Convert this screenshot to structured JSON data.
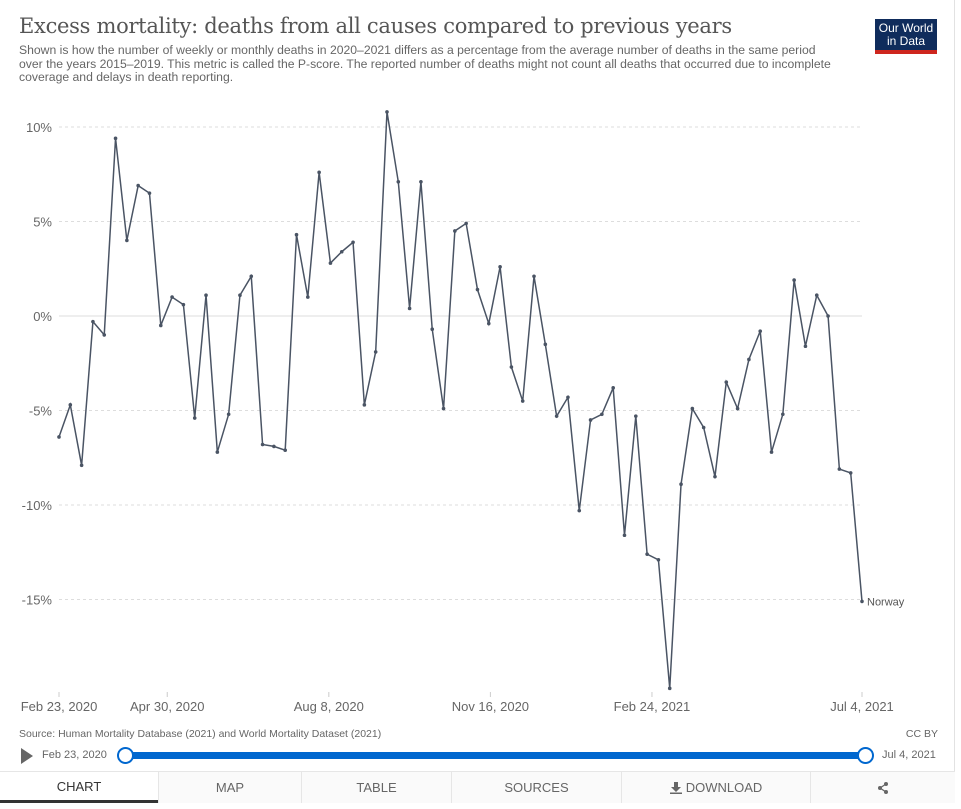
{
  "header": {
    "title": "Excess mortality: deaths from all causes compared to previous years",
    "subtitle": "Shown is how the number of weekly or monthly deaths in 2020–2021 differs as a percentage from the average number of deaths in the same period over the years 2015–2019. This metric is called the P-score. The reported number of deaths might not count all deaths that occurred due to incomplete coverage and delays in death reporting.",
    "logo_text": "Our World in Data"
  },
  "chart_data": {
    "type": "line",
    "title": "Excess mortality: deaths from all causes compared to previous years",
    "xlabel": "",
    "ylabel": "",
    "x_start": "2020-02-23",
    "x_end": "2021-07-04",
    "x_interval": "weekly",
    "x_ticks": [
      "Feb 23, 2020",
      "Apr 30, 2020",
      "Aug 8, 2020",
      "Nov 16, 2020",
      "Feb 24, 2021",
      "Jul 4, 2021"
    ],
    "x_tick_dates": [
      "2020-02-23",
      "2020-04-30",
      "2020-08-08",
      "2020-11-16",
      "2021-02-24",
      "2021-07-04"
    ],
    "y_ticks": [
      10,
      5,
      0,
      -5,
      -10,
      -15
    ],
    "y_tick_labels": [
      "10%",
      "5%",
      "0%",
      "-5%",
      "-10%",
      "-15%"
    ],
    "ylim": [
      -20,
      10.8
    ],
    "grid": "horizontal dashed",
    "line_color": "#4a5464",
    "series": [
      {
        "name": "Norway",
        "values": [
          -6.4,
          -4.7,
          -7.9,
          -0.3,
          -1.0,
          9.4,
          4.0,
          6.9,
          6.5,
          -0.5,
          1.0,
          0.6,
          -5.4,
          1.1,
          -7.2,
          -5.2,
          1.1,
          2.1,
          -6.8,
          -6.9,
          -7.1,
          4.3,
          1.0,
          7.6,
          2.8,
          3.4,
          3.9,
          -4.7,
          -1.9,
          10.8,
          7.1,
          0.4,
          7.1,
          -0.7,
          -4.9,
          4.5,
          4.9,
          1.4,
          -0.4,
          2.6,
          -2.7,
          -4.5,
          2.1,
          -1.5,
          -5.3,
          -4.3,
          -10.3,
          -5.5,
          -5.2,
          -3.8,
          -11.6,
          -5.3,
          -12.6,
          -12.9,
          -19.7,
          -8.9,
          -4.9,
          -5.9,
          -8.5,
          -3.5,
          -4.9,
          -2.3,
          -0.8,
          -7.2,
          -5.2,
          1.9,
          -1.6,
          1.1,
          0.0,
          -8.1,
          -8.3,
          -15.1
        ]
      }
    ]
  },
  "footer": {
    "source": "Source: Human Mortality Database (2021) and World Mortality Dataset (2021)",
    "license": "CC BY",
    "timeline_start": "Feb 23, 2020",
    "timeline_end": "Jul 4, 2021",
    "accent": "#0067cf"
  },
  "tabs": [
    {
      "label": "CHART",
      "active": true
    },
    {
      "label": "MAP"
    },
    {
      "label": "TABLE"
    },
    {
      "label": "SOURCES"
    },
    {
      "label": "DOWNLOAD",
      "icon": "download-icon"
    },
    {
      "label": "",
      "icon": "share-icon"
    }
  ]
}
